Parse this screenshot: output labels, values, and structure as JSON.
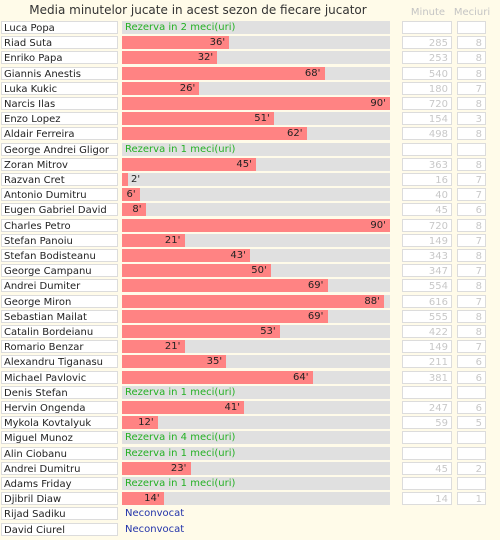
{
  "title": "Media minutelor jucate in acest sezon de fiecare jucator",
  "headers": {
    "minutes": "Minute",
    "matches": "Meciuri"
  },
  "colors": {
    "bar": "#ff8383",
    "track": "#e0e0e0",
    "reserve": "#24b024",
    "not_called": "#2233aa"
  },
  "chart_data": {
    "type": "bar",
    "orientation": "horizontal",
    "title": "Media minutelor jucate in acest sezon de fiecare jucator",
    "xlim": [
      0,
      90
    ],
    "value_suffix": "'",
    "categories": [
      "Luca Popa",
      "Riad Suta",
      "Enriko Papa",
      "Giannis Anestis",
      "Luka Kukic",
      "Narcis Ilas",
      "Enzo Lopez",
      "Aldair Ferreira",
      "George Andrei Gligor",
      "Zoran Mitrov",
      "Razvan Cret",
      "Antonio Dumitru",
      "Eugen Gabriel David",
      "Charles Petro",
      "Stefan Panoiu",
      "Stefan Bodisteanu",
      "George Campanu",
      "Andrei Dumiter",
      "George Miron",
      "Sebastian Mailat",
      "Catalin Bordeianu",
      "Romario Benzar",
      "Alexandru Tiganasu",
      "Michael Pavlovic",
      "Denis Stefan",
      "Hervin Ongenda",
      "Mykola Kovtalyuk",
      "Miguel Munoz",
      "Alin Ciobanu",
      "Andrei Dumitru",
      "Adams Friday",
      "Djibril Diaw",
      "Rijad Sadiku",
      "David Ciurel"
    ],
    "rows": [
      {
        "name": "Luca Popa",
        "avg": null,
        "note": "Rezerva in 2 meci(uri)",
        "note_type": "reserve",
        "minutes": "",
        "matches": ""
      },
      {
        "name": "Riad Suta",
        "avg": 36,
        "note": "",
        "note_type": "",
        "minutes": "285",
        "matches": "8"
      },
      {
        "name": "Enriko Papa",
        "avg": 32,
        "note": "",
        "note_type": "",
        "minutes": "253",
        "matches": "8"
      },
      {
        "name": "Giannis Anestis",
        "avg": 68,
        "note": "",
        "note_type": "",
        "minutes": "540",
        "matches": "8"
      },
      {
        "name": "Luka Kukic",
        "avg": 26,
        "note": "",
        "note_type": "",
        "minutes": "180",
        "matches": "7"
      },
      {
        "name": "Narcis Ilas",
        "avg": 90,
        "note": "",
        "note_type": "",
        "minutes": "720",
        "matches": "8"
      },
      {
        "name": "Enzo Lopez",
        "avg": 51,
        "note": "",
        "note_type": "",
        "minutes": "154",
        "matches": "3"
      },
      {
        "name": "Aldair Ferreira",
        "avg": 62,
        "note": "",
        "note_type": "",
        "minutes": "498",
        "matches": "8"
      },
      {
        "name": "George Andrei Gligor",
        "avg": null,
        "note": "Rezerva in 1 meci(uri)",
        "note_type": "reserve",
        "minutes": "",
        "matches": ""
      },
      {
        "name": "Zoran Mitrov",
        "avg": 45,
        "note": "",
        "note_type": "",
        "minutes": "363",
        "matches": "8"
      },
      {
        "name": "Razvan Cret",
        "avg": 2,
        "note": "",
        "note_type": "",
        "minutes": "16",
        "matches": "7"
      },
      {
        "name": "Antonio Dumitru",
        "avg": 6,
        "note": "",
        "note_type": "",
        "minutes": "40",
        "matches": "7"
      },
      {
        "name": "Eugen Gabriel David",
        "avg": 8,
        "note": "",
        "note_type": "",
        "minutes": "45",
        "matches": "6"
      },
      {
        "name": "Charles Petro",
        "avg": 90,
        "note": "",
        "note_type": "",
        "minutes": "720",
        "matches": "8"
      },
      {
        "name": "Stefan Panoiu",
        "avg": 21,
        "note": "",
        "note_type": "",
        "minutes": "149",
        "matches": "7"
      },
      {
        "name": "Stefan Bodisteanu",
        "avg": 43,
        "note": "",
        "note_type": "",
        "minutes": "343",
        "matches": "8"
      },
      {
        "name": "George Campanu",
        "avg": 50,
        "note": "",
        "note_type": "",
        "minutes": "347",
        "matches": "7"
      },
      {
        "name": "Andrei Dumiter",
        "avg": 69,
        "note": "",
        "note_type": "",
        "minutes": "554",
        "matches": "8"
      },
      {
        "name": "George Miron",
        "avg": 88,
        "note": "",
        "note_type": "",
        "minutes": "616",
        "matches": "7"
      },
      {
        "name": "Sebastian Mailat",
        "avg": 69,
        "note": "",
        "note_type": "",
        "minutes": "555",
        "matches": "8"
      },
      {
        "name": "Catalin Bordeianu",
        "avg": 53,
        "note": "",
        "note_type": "",
        "minutes": "422",
        "matches": "8"
      },
      {
        "name": "Romario Benzar",
        "avg": 21,
        "note": "",
        "note_type": "",
        "minutes": "149",
        "matches": "7"
      },
      {
        "name": "Alexandru Tiganasu",
        "avg": 35,
        "note": "",
        "note_type": "",
        "minutes": "211",
        "matches": "6"
      },
      {
        "name": "Michael Pavlovic",
        "avg": 64,
        "note": "",
        "note_type": "",
        "minutes": "381",
        "matches": "6"
      },
      {
        "name": "Denis Stefan",
        "avg": null,
        "note": "Rezerva in 1 meci(uri)",
        "note_type": "reserve",
        "minutes": "",
        "matches": ""
      },
      {
        "name": "Hervin Ongenda",
        "avg": 41,
        "note": "",
        "note_type": "",
        "minutes": "247",
        "matches": "6"
      },
      {
        "name": "Mykola Kovtalyuk",
        "avg": 12,
        "note": "",
        "note_type": "",
        "minutes": "59",
        "matches": "5"
      },
      {
        "name": "Miguel Munoz",
        "avg": null,
        "note": "Rezerva in 4 meci(uri)",
        "note_type": "reserve",
        "minutes": "",
        "matches": ""
      },
      {
        "name": "Alin Ciobanu",
        "avg": null,
        "note": "Rezerva in 1 meci(uri)",
        "note_type": "reserve",
        "minutes": "",
        "matches": ""
      },
      {
        "name": "Andrei Dumitru",
        "avg": 23,
        "note": "",
        "note_type": "",
        "minutes": "45",
        "matches": "2"
      },
      {
        "name": "Adams Friday",
        "avg": null,
        "note": "Rezerva in 1 meci(uri)",
        "note_type": "reserve",
        "minutes": "",
        "matches": ""
      },
      {
        "name": "Djibril Diaw",
        "avg": 14,
        "note": "",
        "note_type": "",
        "minutes": "14",
        "matches": "1"
      },
      {
        "name": "Rijad Sadiku",
        "avg": null,
        "note": "Neconvocat",
        "note_type": "not_called",
        "minutes": null,
        "matches": null
      },
      {
        "name": "David Ciurel",
        "avg": null,
        "note": "Neconvocat",
        "note_type": "not_called",
        "minutes": null,
        "matches": null
      }
    ]
  }
}
